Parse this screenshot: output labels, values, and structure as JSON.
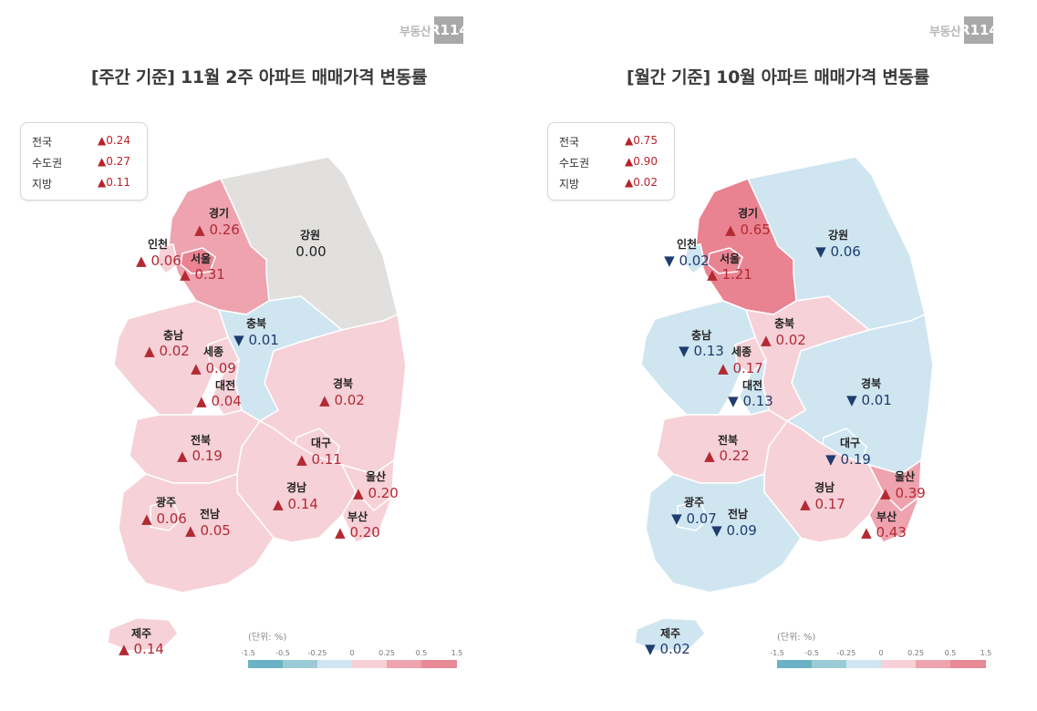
{
  "logo": {
    "text": "부동산",
    "box": "R114"
  },
  "colors": {
    "up_text": "#b32a33",
    "down_text": "#1e3c6e",
    "neutral_fill": "#e1e0df",
    "down_light_fill": "#cfe6f1",
    "up_light_fill": "#f6d1d8",
    "up_mid_fill": "#eea3af",
    "up_strong_fill": "#e98391",
    "scale": [
      "#6bb3c4",
      "#9ccbd8",
      "#cfe6f1",
      "#f6d1d8",
      "#eea3af",
      "#e88a96"
    ]
  },
  "weekly": {
    "title": "[주간 기준] 11월 2주 아파트 매매가격 변동률",
    "summary": [
      {
        "label": "전국",
        "value": "▲0.24"
      },
      {
        "label": "수도권",
        "value": "▲0.27"
      },
      {
        "label": "지방",
        "value": "▲0.11"
      }
    ],
    "regions": [
      {
        "name": "경기",
        "value": "▲ 0.26",
        "dir": "up"
      },
      {
        "name": "강원",
        "value": "0.00",
        "dir": "zero"
      },
      {
        "name": "인천",
        "value": "▲ 0.06",
        "dir": "up"
      },
      {
        "name": "서울",
        "value": "▲ 0.31",
        "dir": "up"
      },
      {
        "name": "충북",
        "value": "▼ 0.01",
        "dir": "down"
      },
      {
        "name": "충남",
        "value": "▲ 0.02",
        "dir": "up"
      },
      {
        "name": "세종",
        "value": "▲ 0.09",
        "dir": "up"
      },
      {
        "name": "대전",
        "value": "▲ 0.04",
        "dir": "up"
      },
      {
        "name": "경북",
        "value": "▲ 0.02",
        "dir": "up"
      },
      {
        "name": "전북",
        "value": "▲ 0.19",
        "dir": "up"
      },
      {
        "name": "대구",
        "value": "▲ 0.11",
        "dir": "up"
      },
      {
        "name": "울산",
        "value": "▲ 0.20",
        "dir": "up"
      },
      {
        "name": "경남",
        "value": "▲ 0.14",
        "dir": "up"
      },
      {
        "name": "광주",
        "value": "▲ 0.06",
        "dir": "up"
      },
      {
        "name": "전남",
        "value": "▲ 0.05",
        "dir": "up"
      },
      {
        "name": "부산",
        "value": "▲ 0.20",
        "dir": "up"
      },
      {
        "name": "제주",
        "value": "▲ 0.14",
        "dir": "up"
      }
    ]
  },
  "monthly": {
    "title": "[월간 기준] 10월 아파트 매매가격 변동률",
    "summary": [
      {
        "label": "전국",
        "value": "▲0.75"
      },
      {
        "label": "수도권",
        "value": "▲0.90"
      },
      {
        "label": "지방",
        "value": "▲0.02"
      }
    ],
    "regions": [
      {
        "name": "경기",
        "value": "▲ 0.65",
        "dir": "up"
      },
      {
        "name": "강원",
        "value": "▼ 0.06",
        "dir": "down"
      },
      {
        "name": "인천",
        "value": "▼ 0.02",
        "dir": "down"
      },
      {
        "name": "서울",
        "value": "▲ 1.21",
        "dir": "up"
      },
      {
        "name": "충북",
        "value": "▲ 0.02",
        "dir": "up"
      },
      {
        "name": "충남",
        "value": "▼ 0.13",
        "dir": "down"
      },
      {
        "name": "세종",
        "value": "▲ 0.17",
        "dir": "up"
      },
      {
        "name": "대전",
        "value": "▼ 0.13",
        "dir": "down"
      },
      {
        "name": "경북",
        "value": "▼ 0.01",
        "dir": "down"
      },
      {
        "name": "전북",
        "value": "▲ 0.22",
        "dir": "up"
      },
      {
        "name": "대구",
        "value": "▼ 0.19",
        "dir": "down"
      },
      {
        "name": "울산",
        "value": "▲ 0.39",
        "dir": "up"
      },
      {
        "name": "경남",
        "value": "▲ 0.17",
        "dir": "up"
      },
      {
        "name": "광주",
        "value": "▼ 0.07",
        "dir": "down"
      },
      {
        "name": "전남",
        "value": "▼ 0.09",
        "dir": "down"
      },
      {
        "name": "부산",
        "value": "▲ 0.43",
        "dir": "up"
      },
      {
        "name": "제주",
        "value": "▼ 0.02",
        "dir": "down"
      }
    ]
  },
  "legend": {
    "unit": "(단위: %)",
    "ticks": [
      "-1.5",
      "-0.5",
      "-0.25",
      "0",
      "0.25",
      "0.5",
      "1.5"
    ]
  }
}
